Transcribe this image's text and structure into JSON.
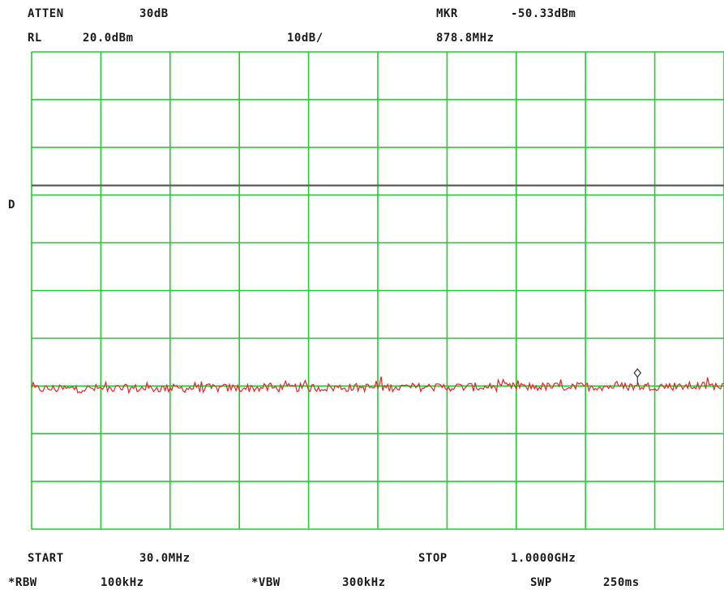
{
  "header": {
    "atten_label": "ATTEN",
    "atten_value": "30dB",
    "marker_label": "MKR",
    "marker_value": "-50.33dBm",
    "rl_label": "RL",
    "rl_value": "20.0dBm",
    "scale": "10dB/",
    "marker_freq": "878.8MHz"
  },
  "display_line_label": "D",
  "footer": {
    "start_label": "START",
    "start_value": "30.0MHz",
    "stop_label": "STOP",
    "stop_value": "1.0000GHz",
    "rbw_label": "*RBW",
    "rbw_value": "100kHz",
    "vbw_label": "*VBW",
    "vbw_value": "300kHz",
    "swp_label": "SWP",
    "swp_value": "250ms"
  },
  "colors": {
    "grid": "#22cc33",
    "trace": "#ee2222",
    "display_line": "#666666",
    "text": "#1a1a1a"
  },
  "chart_data": {
    "type": "line",
    "x_start_mhz": 30.0,
    "x_stop_mhz": 1000.0,
    "ref_level_dbm": 20.0,
    "db_per_div": 10,
    "x_divisions": 10,
    "y_divisions": 10,
    "ylim": [
      -80,
      20
    ],
    "grid": true,
    "display_line_dbm": -8.0,
    "noise_floor_dbm": -50.6,
    "noise_floor_end_dbm": -50.0,
    "marker": {
      "x_mhz": 878.8,
      "y_dbm": -50.33
    }
  }
}
